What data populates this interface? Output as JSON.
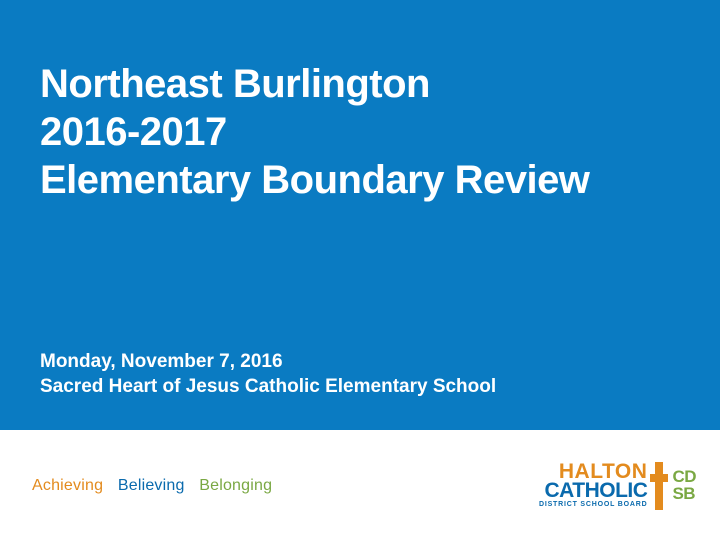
{
  "colors": {
    "panel_bg": "#0a7bc2",
    "panel_text": "#ffffff",
    "footer_bg": "#ffffff",
    "tagline_achieving": "#e38b1e",
    "tagline_believing": "#0a6aad",
    "tagline_belonging": "#7aa843",
    "logo_orange": "#e38b1e",
    "logo_blue": "#0a6aad",
    "logo_green": "#7aa843"
  },
  "title": {
    "line1": "Northeast Burlington",
    "line2": "2016-2017",
    "line3": "Elementary Boundary Review"
  },
  "subtitle": {
    "date": "Monday, November 7, 2016",
    "location": "Sacred Heart of Jesus Catholic Elementary School"
  },
  "tagline": {
    "word1": "Achieving",
    "word2": "Believing",
    "word3": "Belonging"
  },
  "logo": {
    "top": "HALTON",
    "mid": "CATHOLIC",
    "bottom": "DISTRICT SCHOOL BOARD",
    "right_top": "CD",
    "right_bottom": "SB"
  }
}
